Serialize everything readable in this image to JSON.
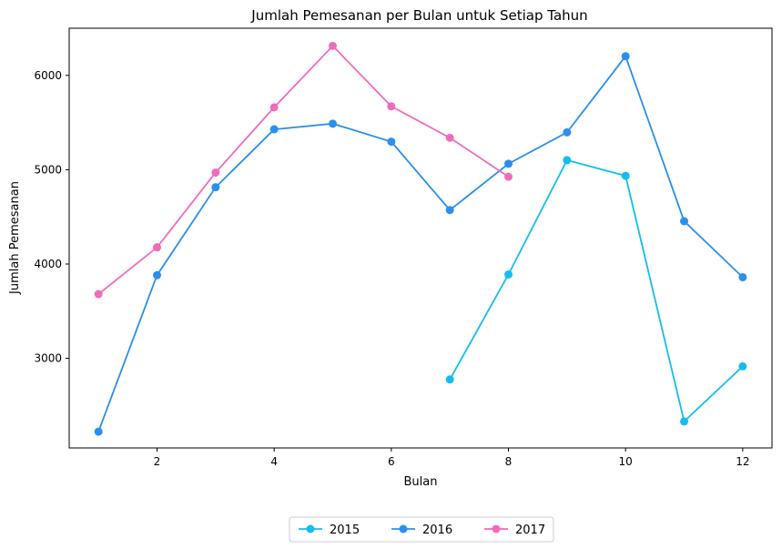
{
  "chart_data": {
    "type": "line",
    "title": "Jumlah Pemesanan per Bulan untuk Setiap Tahun",
    "xlabel": "Bulan",
    "ylabel": "Jumlah Pemesanan",
    "xlim": [
      0.5,
      12.5
    ],
    "ylim": [
      2050,
      6500
    ],
    "xticks": [
      2,
      4,
      6,
      8,
      10,
      12
    ],
    "yticks": [
      3000,
      4000,
      5000,
      6000
    ],
    "grid": false,
    "legend_position": "bottom-center",
    "series": [
      {
        "name": "2015",
        "color": "#14bdf0",
        "x": [
          7,
          8,
          9,
          10,
          11,
          12
        ],
        "y": [
          2776,
          3889,
          5101,
          4935,
          2331,
          2915
        ]
      },
      {
        "name": "2016",
        "color": "#2a8ff0",
        "x": [
          1,
          2,
          3,
          4,
          5,
          6,
          7,
          8,
          9,
          10,
          11,
          12
        ],
        "y": [
          2223,
          3882,
          4814,
          5428,
          5488,
          5297,
          4572,
          5063,
          5396,
          6203,
          4454,
          3860
        ]
      },
      {
        "name": "2017",
        "color": "#ef6cbc",
        "x": [
          1,
          2,
          3,
          4,
          5,
          6,
          7,
          8
        ],
        "y": [
          3681,
          4177,
          4970,
          5661,
          6313,
          5672,
          5338,
          4925
        ]
      }
    ]
  }
}
